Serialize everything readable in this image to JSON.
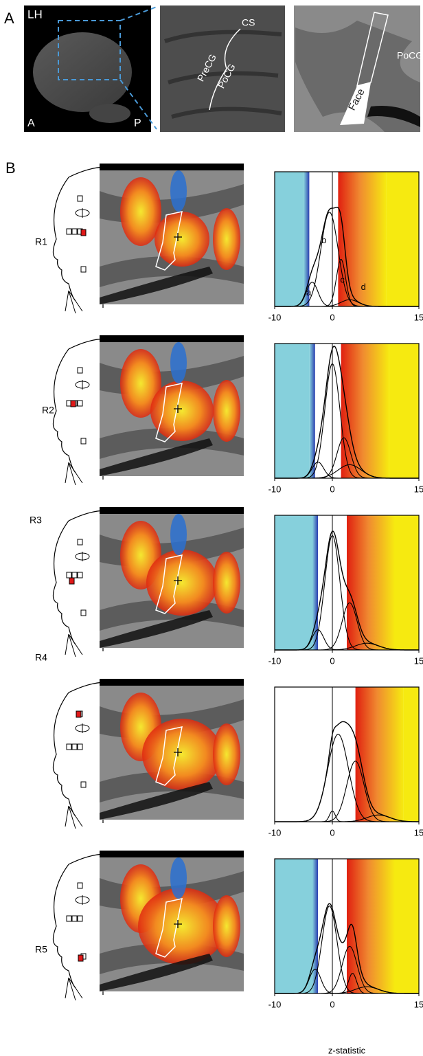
{
  "panel_a": {
    "label": "A",
    "hemisphere": "LH",
    "anterior": "A",
    "posterior": "P",
    "cs": "CS",
    "precg": "PreCG",
    "pocg": "PoCG",
    "face": "Face",
    "pocg_flat": "PoCG"
  },
  "panel_b": {
    "label": "B",
    "x_label": "z-statistic",
    "rows": [
      {
        "region": "R1",
        "xlim": [
          -10,
          15
        ],
        "xticks": [
          -10,
          0,
          15
        ],
        "ylim": [
          0,
          1
        ],
        "negative_threshold": -4,
        "positive_threshold": 1,
        "components": [
          {
            "label": "a",
            "mean": -3.5,
            "sd": 1,
            "height": 0.18
          },
          {
            "label": "b",
            "mean": -0.5,
            "sd": 1.5,
            "height": 0.7
          },
          {
            "label": "c",
            "mean": 1.5,
            "sd": 0.8,
            "height": 0.35
          },
          {
            "label": "d",
            "mean": 3,
            "sd": 1.5,
            "height": 0.05
          }
        ]
      },
      {
        "region": "R2",
        "xlim": [
          -10,
          15
        ],
        "xticks": [
          -10,
          0,
          15
        ],
        "ylim": [
          0,
          1
        ],
        "negative_threshold": -3,
        "positive_threshold": 1.5,
        "components": [
          {
            "mean": -2.5,
            "sd": 1,
            "height": 0.12
          },
          {
            "mean": 0,
            "sd": 1.3,
            "height": 0.85
          },
          {
            "mean": 2,
            "sd": 1.2,
            "height": 0.3
          },
          {
            "mean": 3,
            "sd": 2,
            "height": 0.1
          }
        ]
      },
      {
        "region": "R3",
        "xlim": [
          -10,
          15
        ],
        "xticks": [
          -10,
          0,
          15
        ],
        "ylim": [
          0,
          1
        ],
        "negative_threshold": -2.5,
        "positive_threshold": 2.5,
        "components": [
          {
            "mean": -2.5,
            "sd": 1,
            "height": 0.15
          },
          {
            "mean": 0,
            "sd": 1.3,
            "height": 0.85
          },
          {
            "mean": 3,
            "sd": 1.3,
            "height": 0.35
          },
          {
            "mean": 6,
            "sd": 2,
            "height": 0.05
          }
        ]
      },
      {
        "region": "R4",
        "xlim": [
          -10,
          15
        ],
        "xticks": [
          -10,
          0,
          15
        ],
        "ylim": [
          0,
          1
        ],
        "positive_threshold": 4,
        "components": [
          {
            "mean": 0,
            "sd": 0.5,
            "height": 0.08
          },
          {
            "mean": 1,
            "sd": 1.8,
            "height": 0.65
          },
          {
            "mean": 4,
            "sd": 1.5,
            "height": 0.45
          },
          {
            "mean": 8,
            "sd": 2,
            "height": 0.05
          }
        ]
      },
      {
        "region": "R5",
        "xlim": [
          -10,
          15
        ],
        "xticks": [
          -10,
          0,
          15
        ],
        "ylim": [
          0,
          1
        ],
        "negative_threshold": -2.5,
        "positive_threshold": 2.5,
        "components": [
          {
            "mean": -3,
            "sd": 1,
            "height": 0.18
          },
          {
            "mean": -0.5,
            "sd": 1.3,
            "height": 0.65
          },
          {
            "mean": 3,
            "sd": 1.3,
            "height": 0.35
          },
          {
            "mean": 3.5,
            "sd": 0.7,
            "height": 0.15
          },
          {
            "mean": 6,
            "sd": 2,
            "height": 0.05
          }
        ]
      }
    ]
  }
}
